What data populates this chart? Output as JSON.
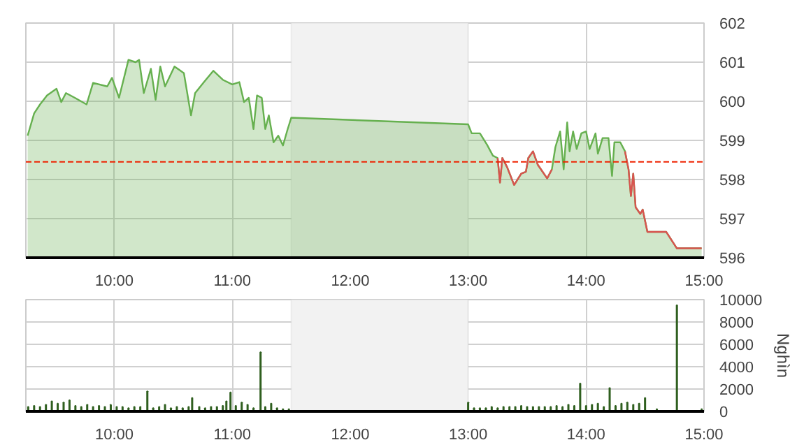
{
  "chart_data": [
    {
      "type": "area",
      "xlim": [
        9.25,
        15
      ],
      "ylim": [
        596,
        602
      ],
      "yticks": [
        596,
        597,
        598,
        599,
        600,
        601,
        602
      ],
      "xticks": [
        {
          "value": 10,
          "label": "10:00"
        },
        {
          "value": 11,
          "label": "11:00"
        },
        {
          "value": 12,
          "label": "12:00"
        },
        {
          "value": 13,
          "label": "13:00"
        },
        {
          "value": 14,
          "label": "14:00"
        },
        {
          "value": 15,
          "label": "15:00"
        }
      ],
      "grid": true,
      "marker": "none",
      "bands": [
        {
          "axis": "x",
          "from": 11.5,
          "to": 13,
          "color": "#f2f2f2"
        }
      ],
      "ref_lines": [
        {
          "axis": "y",
          "value": 598.45,
          "color": "#ee2200",
          "line_style": "dashed"
        }
      ],
      "series": [
        {
          "color": "#66b04f",
          "x": [
            9.265,
            9.32,
            9.37,
            9.43,
            9.51,
            9.55,
            9.59,
            9.665,
            9.765,
            9.82,
            9.94,
            9.98,
            10.04,
            10.12,
            10.18,
            10.21,
            10.25,
            10.31,
            10.35,
            10.39,
            10.43,
            10.51,
            10.59,
            10.65,
            10.685,
            10.76,
            10.84,
            10.92,
            11.0,
            11.06,
            11.1,
            11.14,
            11.18,
            11.21,
            11.25,
            11.28,
            11.31,
            11.35,
            11.39,
            11.43,
            11.47,
            11.5,
            13.0,
            13.03,
            13.1,
            13.16,
            13.21,
            13.25,
            13.27,
            13.29,
            13.33,
            13.39,
            13.45,
            13.49,
            13.51,
            13.55,
            13.59,
            13.67,
            13.71,
            13.74,
            13.78,
            13.81,
            13.84,
            13.86,
            13.89,
            13.92,
            13.96,
            14.0,
            14.03,
            14.08,
            14.1,
            14.14,
            14.19,
            14.22,
            14.24,
            14.29,
            14.33,
            14.36,
            14.38,
            14.4,
            14.42,
            14.46,
            14.48,
            14.52,
            14.68,
            14.77,
            14.98
          ],
          "values": [
            599.12,
            599.69,
            599.92,
            600.15,
            600.32,
            599.98,
            600.21,
            600.09,
            599.92,
            600.47,
            600.38,
            600.6,
            600.09,
            601.06,
            601.0,
            601.06,
            600.21,
            600.83,
            600.04,
            600.89,
            600.38,
            600.89,
            600.72,
            599.64,
            600.21,
            600.49,
            600.78,
            600.55,
            600.43,
            600.49,
            599.98,
            600.09,
            599.29,
            600.15,
            600.09,
            599.29,
            599.64,
            598.95,
            599.12,
            598.87,
            599.29,
            599.58,
            599.41,
            599.18,
            599.18,
            598.89,
            598.61,
            598.55,
            597.92,
            598.55,
            598.32,
            597.86,
            598.15,
            598.2,
            598.55,
            598.72,
            598.38,
            598.03,
            598.26,
            598.83,
            599.23,
            598.26,
            599.46,
            598.72,
            599.23,
            598.78,
            599.18,
            599.23,
            598.78,
            599.18,
            598.66,
            599.06,
            599.06,
            598.09,
            598.95,
            598.95,
            598.72,
            598.26,
            597.58,
            598.15,
            597.29,
            597.12,
            597.23,
            596.66,
            596.66,
            596.24,
            596.24
          ]
        },
        {
          "type": "line",
          "color": "#d9534f",
          "x": [
            13.25,
            13.27,
            13.29,
            13.33,
            13.39,
            13.45,
            13.49,
            13.51,
            13.55,
            13.59,
            13.67,
            13.71,
            13.72,
            14.33,
            14.36,
            14.38,
            14.4,
            14.42,
            14.46,
            14.48,
            14.52,
            14.68,
            14.77,
            14.98
          ],
          "values": [
            598.55,
            597.92,
            598.55,
            598.32,
            597.86,
            598.15,
            598.2,
            598.55,
            598.72,
            598.38,
            598.03,
            598.26,
            null,
            598.72,
            598.26,
            597.58,
            598.15,
            597.29,
            597.12,
            597.23,
            596.66,
            596.66,
            596.24,
            596.24
          ]
        }
      ]
    },
    {
      "type": "bar",
      "xlim": [
        9.25,
        15
      ],
      "ylim": [
        0,
        10000
      ],
      "yticks": [
        0,
        2000,
        4000,
        6000,
        8000,
        10000
      ],
      "ylabel": "Nghìn",
      "xticks": [
        {
          "value": 10,
          "label": "10:00"
        },
        {
          "value": 11,
          "label": "11:00"
        },
        {
          "value": 12,
          "label": "12:00"
        },
        {
          "value": 13,
          "label": "13:00"
        },
        {
          "value": 14,
          "label": "14:00"
        },
        {
          "value": 15,
          "label": "15:00"
        }
      ],
      "grid": true,
      "bands": [
        {
          "axis": "x",
          "from": 11.5,
          "to": 13,
          "color": "#f2f2f2"
        }
      ],
      "series": [
        {
          "color": "#2f5f1f",
          "x": [
            9.27,
            9.32,
            9.37,
            9.42,
            9.47,
            9.52,
            9.57,
            9.62,
            9.67,
            9.72,
            9.77,
            9.82,
            9.87,
            9.92,
            9.97,
            10.02,
            10.07,
            10.12,
            10.17,
            10.22,
            10.28,
            10.33,
            10.38,
            10.43,
            10.48,
            10.53,
            10.58,
            10.63,
            10.66,
            10.72,
            10.77,
            10.82,
            10.87,
            10.92,
            10.95,
            10.985,
            11.03,
            11.08,
            11.13,
            11.18,
            11.24,
            11.28,
            11.33,
            11.38,
            11.43,
            11.48,
            13.0,
            13.05,
            13.1,
            13.15,
            13.2,
            13.25,
            13.3,
            13.35,
            13.4,
            13.45,
            13.5,
            13.55,
            13.6,
            13.65,
            13.7,
            13.75,
            13.8,
            13.85,
            13.9,
            13.95,
            14.0,
            14.05,
            14.1,
            14.15,
            14.2,
            14.25,
            14.3,
            14.35,
            14.4,
            14.45,
            14.5,
            14.6,
            14.77,
            14.98
          ],
          "values": [
            400,
            500,
            400,
            600,
            900,
            700,
            800,
            1000,
            500,
            400,
            600,
            400,
            500,
            400,
            600,
            400,
            400,
            300,
            400,
            400,
            1800,
            300,
            400,
            600,
            300,
            400,
            300,
            400,
            1200,
            400,
            300,
            400,
            400,
            500,
            900,
            1700,
            500,
            800,
            600,
            300,
            5300,
            400,
            700,
            300,
            200,
            200,
            800,
            300,
            300,
            300,
            400,
            300,
            400,
            400,
            400,
            500,
            400,
            400,
            400,
            400,
            400,
            500,
            400,
            600,
            500,
            2500,
            500,
            600,
            700,
            400,
            2100,
            500,
            700,
            800,
            600,
            700,
            1200,
            200,
            9500,
            200
          ]
        }
      ]
    }
  ]
}
